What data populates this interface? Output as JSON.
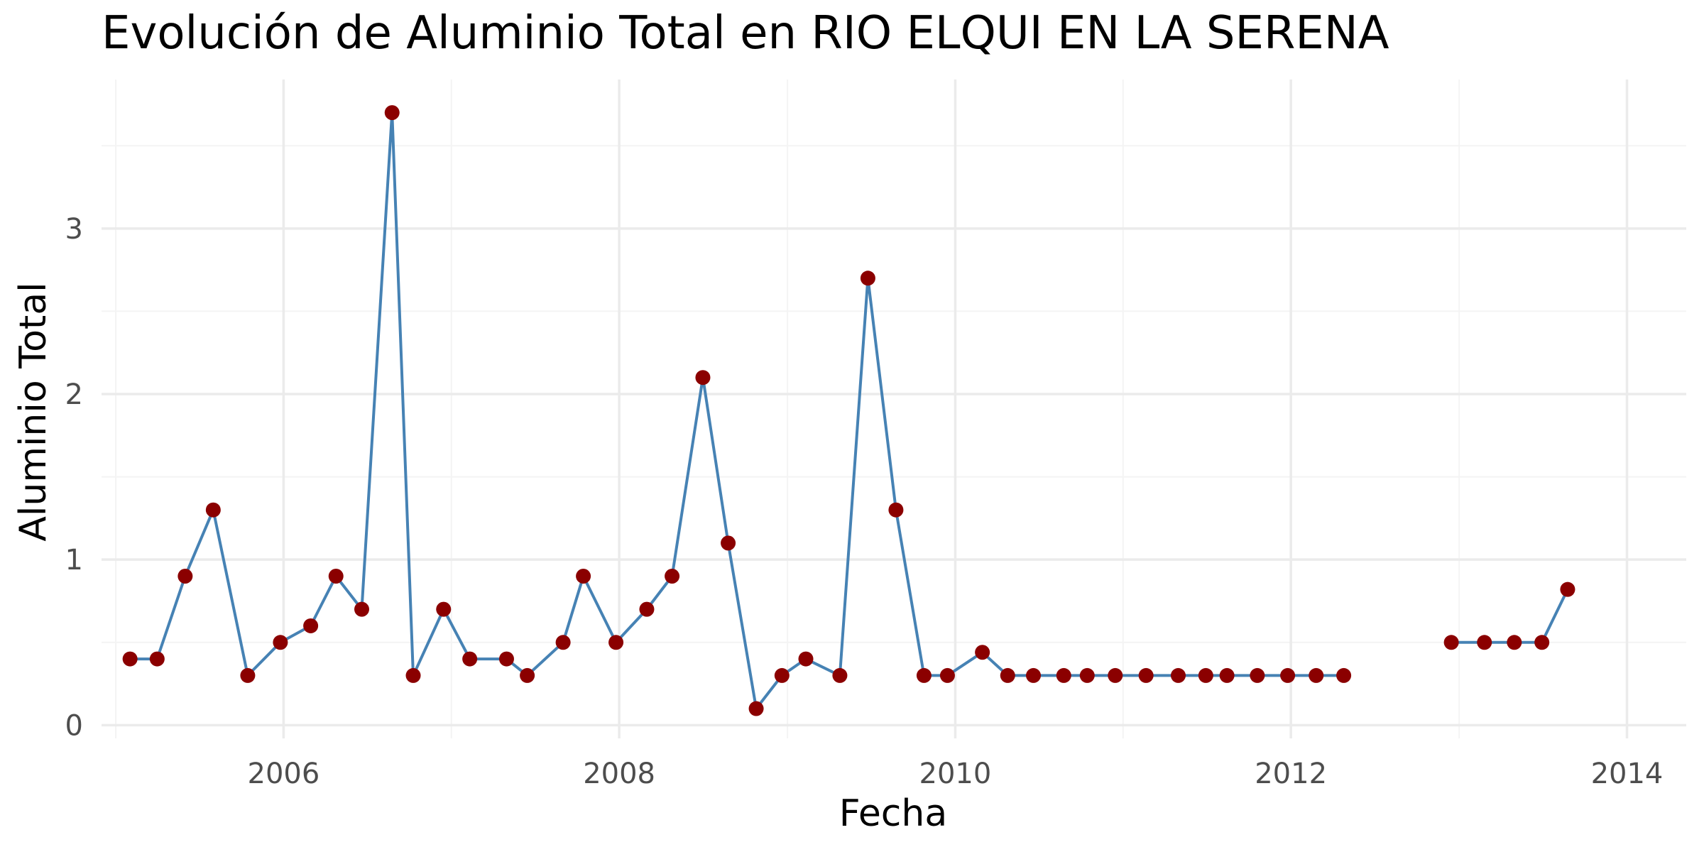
{
  "chart_data": {
    "type": "line",
    "title": "Evolución de Aluminio Total en RIO ELQUI EN LA SERENA",
    "xlabel": "Fecha",
    "ylabel": "Aluminio Total",
    "x_axis_type": "date",
    "xlim": [
      "2004-12-01",
      "2014-05-10"
    ],
    "ylim": [
      -0.08,
      3.9
    ],
    "x_ticks": [
      "2006",
      "2008",
      "2010",
      "2012",
      "2014"
    ],
    "y_ticks": [
      "0",
      "1",
      "2",
      "3"
    ],
    "grid": true,
    "legend": "none",
    "colors": {
      "line": "#4682b4",
      "points": "#8b0000",
      "grid_major": "#ebebeb",
      "grid_minor": "#f4f4f4",
      "tick_text": "#4d4d4d"
    },
    "segments": [
      {
        "x": [
          "2005-02-01",
          "2005-04-01",
          "2005-06-01",
          "2005-08-01",
          "2005-10-15",
          "2005-12-25",
          "2006-03-01",
          "2006-04-25",
          "2006-06-20",
          "2006-08-25",
          "2006-10-10",
          "2006-12-15",
          "2007-02-10",
          "2007-05-01",
          "2007-06-15",
          "2007-09-01",
          "2007-10-15",
          "2007-12-25",
          "2008-03-01",
          "2008-04-25",
          "2008-07-01",
          "2008-08-25",
          "2008-10-25",
          "2008-12-20",
          "2009-02-10",
          "2009-04-25",
          "2009-06-25",
          "2009-08-25",
          "2009-10-25",
          "2009-12-15",
          "2010-03-01",
          "2010-04-25",
          "2010-06-20",
          "2010-08-25",
          "2010-10-15",
          "2010-12-15",
          "2011-02-20",
          "2011-05-01",
          "2011-06-30",
          "2011-08-15",
          "2011-10-20",
          "2011-12-25",
          "2012-02-25",
          "2012-04-25"
        ],
        "y": [
          0.4,
          0.4,
          0.9,
          1.3,
          0.3,
          0.5,
          0.6,
          0.9,
          0.7,
          3.7,
          0.3,
          0.7,
          0.4,
          0.4,
          0.3,
          0.5,
          0.9,
          0.5,
          0.7,
          0.9,
          2.1,
          1.1,
          0.1,
          0.3,
          0.4,
          0.3,
          2.7,
          1.3,
          0.3,
          0.3,
          0.44,
          0.3,
          0.3,
          0.3,
          0.3,
          0.3,
          0.3,
          0.3,
          0.3,
          0.3,
          0.3,
          0.3,
          0.3,
          0.3
        ]
      },
      {
        "x": [
          "2012-12-15",
          "2013-02-25",
          "2013-05-01",
          "2013-06-30",
          "2013-08-25"
        ],
        "y": [
          0.5,
          0.5,
          0.5,
          0.5,
          0.82
        ]
      }
    ]
  }
}
